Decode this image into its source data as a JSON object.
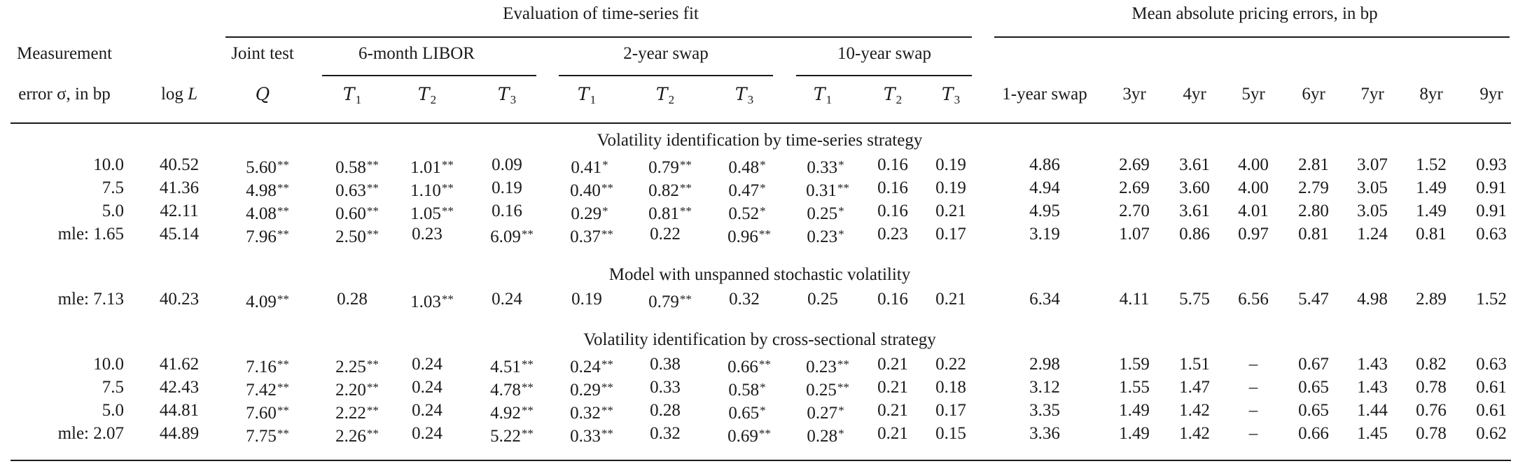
{
  "header": {
    "group_fit": "Evaluation of time-series fit",
    "group_errors": "Mean absolute pricing errors, in bp",
    "measurement_line1": "Measurement",
    "measurement_line2": "error σ, in bp",
    "logL": "log L",
    "joint_test_line1": "Joint test",
    "joint_test_line2": "Q",
    "libor": "6-month LIBOR",
    "swap2": "2-year swap",
    "swap10": "10-year swap",
    "t1": "T",
    "t2": "T",
    "t3": "T",
    "t1_sub": "1",
    "t2_sub": "2",
    "t3_sub": "3",
    "err_cols": [
      "1-year swap",
      "3yr",
      "4yr",
      "5yr",
      "6yr",
      "7yr",
      "8yr",
      "9yr"
    ]
  },
  "panels": [
    {
      "title": "Volatility identification by time-series strategy",
      "rows": [
        {
          "cells": [
            "10.0",
            "40.52",
            "5.60",
            "0.58",
            "1.01",
            "0.09",
            "0.41",
            "0.79",
            "0.48",
            "0.33",
            "0.16",
            "0.19",
            "4.86",
            "2.69",
            "3.61",
            "4.00",
            "2.81",
            "3.07",
            "1.52",
            "0.93"
          ],
          "stars": [
            "",
            "",
            "**",
            "**",
            "**",
            "",
            "*",
            "**",
            "*",
            "*",
            "",
            "",
            "",
            "",
            "",
            "",
            "",
            "",
            "",
            ""
          ]
        },
        {
          "cells": [
            "7.5",
            "41.36",
            "4.98",
            "0.63",
            "1.10",
            "0.19",
            "0.40",
            "0.82",
            "0.47",
            "0.31",
            "0.16",
            "0.19",
            "4.94",
            "2.69",
            "3.60",
            "4.00",
            "2.79",
            "3.05",
            "1.49",
            "0.91"
          ],
          "stars": [
            "",
            "",
            "**",
            "**",
            "**",
            "",
            "**",
            "**",
            "*",
            "**",
            "",
            "",
            "",
            "",
            "",
            "",
            "",
            "",
            "",
            ""
          ]
        },
        {
          "cells": [
            "5.0",
            "42.11",
            "4.08",
            "0.60",
            "1.05",
            "0.16",
            "0.29",
            "0.81",
            "0.52",
            "0.25",
            "0.16",
            "0.21",
            "4.95",
            "2.70",
            "3.61",
            "4.01",
            "2.80",
            "3.05",
            "1.49",
            "0.91"
          ],
          "stars": [
            "",
            "",
            "**",
            "**",
            "**",
            "",
            "*",
            "**",
            "*",
            "*",
            "",
            "",
            "",
            "",
            "",
            "",
            "",
            "",
            "",
            ""
          ]
        },
        {
          "cells": [
            "mle: 1.65",
            "45.14",
            "7.96",
            "2.50",
            "0.23",
            "6.09",
            "0.37",
            "0.22",
            "0.96",
            "0.23",
            "0.23",
            "0.17",
            "3.19",
            "1.07",
            "0.86",
            "0.97",
            "0.81",
            "1.24",
            "0.81",
            "0.63"
          ],
          "stars": [
            "",
            "",
            "**",
            "**",
            "",
            "**",
            "**",
            "",
            "**",
            "*",
            "",
            "",
            "",
            "",
            "",
            "",
            "",
            "",
            "",
            ""
          ]
        }
      ]
    },
    {
      "title": "Model with unspanned stochastic volatility",
      "rows": [
        {
          "cells": [
            "mle: 7.13",
            "40.23",
            "4.09",
            "0.28",
            "1.03",
            "0.24",
            "0.19",
            "0.79",
            "0.32",
            "0.25",
            "0.16",
            "0.21",
            "6.34",
            "4.11",
            "5.75",
            "6.56",
            "5.47",
            "4.98",
            "2.89",
            "1.52"
          ],
          "stars": [
            "",
            "",
            "**",
            "",
            "**",
            "",
            "",
            "**",
            "",
            "",
            "",
            "",
            "",
            "",
            "",
            "",
            "",
            "",
            "",
            ""
          ]
        }
      ]
    },
    {
      "title": "Volatility identification by cross-sectional strategy",
      "rows": [
        {
          "cells": [
            "10.0",
            "41.62",
            "7.16",
            "2.25",
            "0.24",
            "4.51",
            "0.24",
            "0.38",
            "0.66",
            "0.23",
            "0.21",
            "0.22",
            "2.98",
            "1.59",
            "1.51",
            "–",
            "0.67",
            "1.43",
            "0.82",
            "0.63"
          ],
          "stars": [
            "",
            "",
            "**",
            "**",
            "",
            "**",
            "**",
            "",
            "**",
            "**",
            "",
            "",
            "",
            "",
            "",
            "",
            "",
            "",
            "",
            ""
          ]
        },
        {
          "cells": [
            "7.5",
            "42.43",
            "7.42",
            "2.20",
            "0.24",
            "4.78",
            "0.29",
            "0.33",
            "0.58",
            "0.25",
            "0.21",
            "0.18",
            "3.12",
            "1.55",
            "1.47",
            "–",
            "0.65",
            "1.43",
            "0.78",
            "0.61"
          ],
          "stars": [
            "",
            "",
            "**",
            "**",
            "",
            "**",
            "**",
            "",
            "*",
            "**",
            "",
            "",
            "",
            "",
            "",
            "",
            "",
            "",
            "",
            ""
          ]
        },
        {
          "cells": [
            "5.0",
            "44.81",
            "7.60",
            "2.22",
            "0.24",
            "4.92",
            "0.32",
            "0.28",
            "0.65",
            "0.27",
            "0.21",
            "0.17",
            "3.35",
            "1.49",
            "1.42",
            "–",
            "0.65",
            "1.44",
            "0.76",
            "0.61"
          ],
          "stars": [
            "",
            "",
            "**",
            "**",
            "",
            "**",
            "**",
            "",
            "*",
            "*",
            "",
            "",
            "",
            "",
            "",
            "",
            "",
            "",
            "",
            ""
          ]
        },
        {
          "cells": [
            "mle: 2.07",
            "44.89",
            "7.75",
            "2.26",
            "0.24",
            "5.22",
            "0.33",
            "0.32",
            "0.69",
            "0.28",
            "0.21",
            "0.15",
            "3.36",
            "1.49",
            "1.42",
            "–",
            "0.66",
            "1.45",
            "0.78",
            "0.62"
          ],
          "stars": [
            "",
            "",
            "**",
            "**",
            "",
            "**",
            "**",
            "",
            "**",
            "*",
            "",
            "",
            "",
            "",
            "",
            "",
            "",
            "",
            "",
            ""
          ]
        }
      ]
    }
  ]
}
